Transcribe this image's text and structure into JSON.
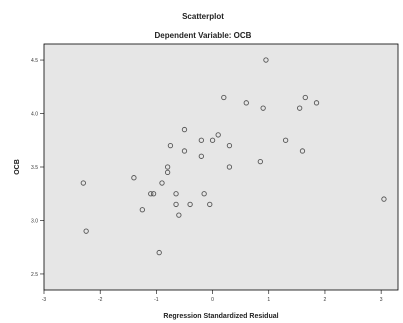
{
  "chart_data": {
    "type": "scatter",
    "title": "Scatterplot",
    "subtitle": "Dependent Variable: OCB",
    "xlabel": "Regression Standardized Residual",
    "ylabel": "OCB",
    "xlim": [
      -3,
      3.3
    ],
    "ylim": [
      2.35,
      4.65
    ],
    "x_ticks": [
      -3,
      -2,
      -1,
      0,
      1,
      2,
      3
    ],
    "y_ticks": [
      2.5,
      3.0,
      3.5,
      4.0,
      4.5
    ],
    "x_tick_labels": [
      "-3",
      "-2",
      "-1",
      "0",
      "1",
      "2",
      "3"
    ],
    "y_tick_labels": [
      "2.5",
      "3.0",
      "3.5",
      "4.0",
      "4.5"
    ],
    "grid": false,
    "colors": {
      "plot_bg": "#e6e6e6",
      "frame": "#000000",
      "marker": "#555555"
    },
    "points": [
      {
        "x": 0.95,
        "y": 4.5
      },
      {
        "x": 0.2,
        "y": 4.15
      },
      {
        "x": 0.6,
        "y": 4.1
      },
      {
        "x": 0.9,
        "y": 4.05
      },
      {
        "x": 1.65,
        "y": 4.15
      },
      {
        "x": 1.55,
        "y": 4.05
      },
      {
        "x": 1.85,
        "y": 4.1
      },
      {
        "x": -0.5,
        "y": 3.85
      },
      {
        "x": -0.75,
        "y": 3.7
      },
      {
        "x": -0.2,
        "y": 3.75
      },
      {
        "x": -0.5,
        "y": 3.65
      },
      {
        "x": 0.1,
        "y": 3.8
      },
      {
        "x": 0.0,
        "y": 3.75
      },
      {
        "x": 0.3,
        "y": 3.7
      },
      {
        "x": 1.3,
        "y": 3.75
      },
      {
        "x": 1.6,
        "y": 3.65
      },
      {
        "x": -0.2,
        "y": 3.6
      },
      {
        "x": 0.3,
        "y": 3.5
      },
      {
        "x": 0.85,
        "y": 3.55
      },
      {
        "x": -0.8,
        "y": 3.45
      },
      {
        "x": -0.8,
        "y": 3.5
      },
      {
        "x": -0.9,
        "y": 3.35
      },
      {
        "x": -0.65,
        "y": 3.25
      },
      {
        "x": -0.15,
        "y": 3.25
      },
      {
        "x": -0.05,
        "y": 3.15
      },
      {
        "x": -0.65,
        "y": 3.15
      },
      {
        "x": -0.4,
        "y": 3.15
      },
      {
        "x": -0.6,
        "y": 3.05
      },
      {
        "x": -1.1,
        "y": 3.25
      },
      {
        "x": -1.05,
        "y": 3.25
      },
      {
        "x": -1.25,
        "y": 3.1
      },
      {
        "x": -2.3,
        "y": 3.35
      },
      {
        "x": -2.25,
        "y": 2.9
      },
      {
        "x": -0.95,
        "y": 2.7
      },
      {
        "x": -1.4,
        "y": 3.4
      },
      {
        "x": 3.05,
        "y": 3.2
      }
    ]
  }
}
